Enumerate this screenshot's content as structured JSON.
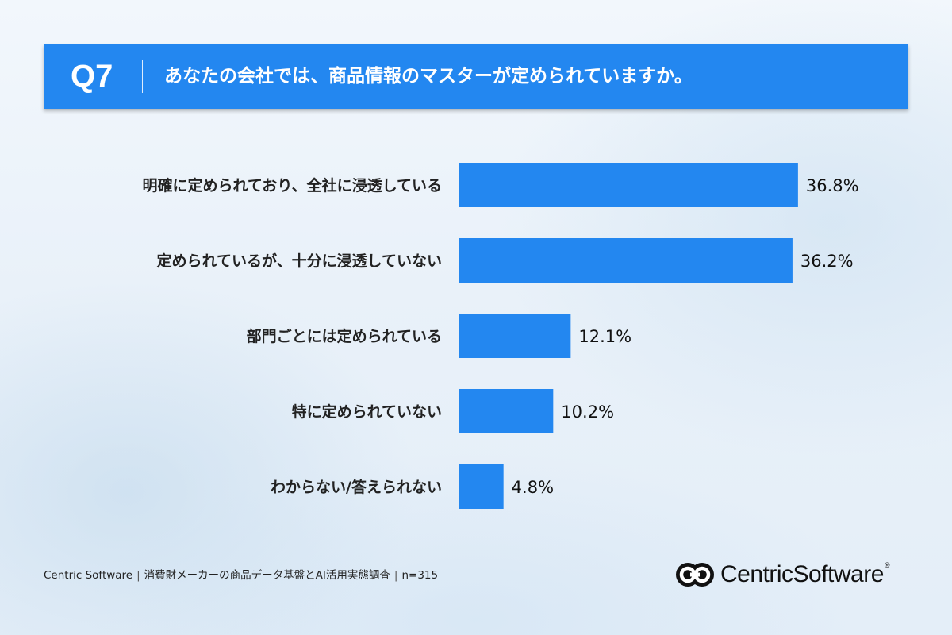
{
  "header": {
    "question_number": "Q7",
    "question_text": "あなたの会社では、商品情報のマスターが定められていますか。"
  },
  "chart_data": {
    "type": "bar",
    "orientation": "horizontal",
    "categories": [
      "明確に定められており、全社に浸透している",
      "定められているが、十分に浸透していない",
      "部門ごとには定められている",
      "特に定められていない",
      "わからない/答えられない"
    ],
    "values": [
      36.8,
      36.2,
      12.1,
      10.2,
      4.8
    ],
    "value_labels": [
      "36.8%",
      "36.2%",
      "12.1%",
      "10.2%",
      "4.8%"
    ],
    "xlim": [
      0,
      100
    ],
    "grid": false,
    "bar_color": "#2387f0"
  },
  "footer": {
    "company": "Centric Software",
    "separator": "|",
    "survey_title": "消費財メーカーの商品データ基盤とAI活用実態調査",
    "sample_size": "n=315"
  },
  "logo": {
    "name_part1": "Centric",
    "name_part2": "Software",
    "mark": "®"
  }
}
